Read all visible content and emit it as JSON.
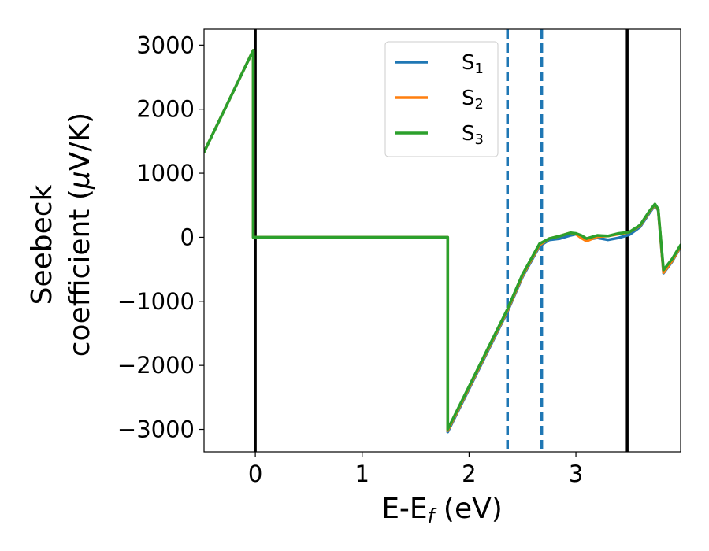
{
  "chart_data": {
    "type": "line",
    "title": "",
    "xlabel_main": "E-E",
    "xlabel_sub": "f",
    "xlabel_unit": " (eV)",
    "ylabel_line1": "Seebeck",
    "ylabel_line2_prefix": "coefficient  (",
    "ylabel_mu": "μ",
    "ylabel_line2_suffix": "V/K)",
    "xlim": [
      -0.48,
      3.98
    ],
    "ylim": [
      -3350,
      3250
    ],
    "xticks": [
      {
        "value": 0,
        "label": "0"
      },
      {
        "value": 1,
        "label": "1"
      },
      {
        "value": 2,
        "label": "2"
      },
      {
        "value": 3,
        "label": "3"
      }
    ],
    "yticks": [
      {
        "value": 3000,
        "label": "3000"
      },
      {
        "value": 2000,
        "label": "2000"
      },
      {
        "value": 1000,
        "label": "1000"
      },
      {
        "value": 0,
        "label": "0"
      },
      {
        "value": -1000,
        "label": "−1000"
      },
      {
        "value": -2000,
        "label": "−2000"
      },
      {
        "value": -3000,
        "label": "−3000"
      }
    ],
    "grid": false,
    "legend_position": "top-center",
    "vlines": [
      {
        "x": 0.0,
        "style": "solid",
        "color": "#000000"
      },
      {
        "x": 3.48,
        "style": "solid",
        "color": "#000000"
      },
      {
        "x": 2.36,
        "style": "dashed",
        "color": "#1f77b4"
      },
      {
        "x": 2.68,
        "style": "dashed",
        "color": "#1f77b4"
      }
    ],
    "series": [
      {
        "name_main": "S",
        "name_sub": "1",
        "color": "#1f77b4",
        "points": [
          [
            -0.48,
            1330
          ],
          [
            -0.02,
            2920
          ],
          [
            -0.02,
            0
          ],
          [
            1.8,
            0
          ],
          [
            1.8,
            -3040
          ],
          [
            2.36,
            -1160
          ],
          [
            2.5,
            -620
          ],
          [
            2.66,
            -140
          ],
          [
            2.75,
            -40
          ],
          [
            2.85,
            -20
          ],
          [
            2.95,
            30
          ],
          [
            3.0,
            50
          ],
          [
            3.05,
            10
          ],
          [
            3.1,
            -40
          ],
          [
            3.2,
            -10
          ],
          [
            3.3,
            -40
          ],
          [
            3.4,
            -10
          ],
          [
            3.5,
            40
          ],
          [
            3.6,
            160
          ],
          [
            3.68,
            360
          ],
          [
            3.74,
            500
          ],
          [
            3.77,
            420
          ],
          [
            3.82,
            -560
          ],
          [
            3.9,
            -380
          ],
          [
            3.98,
            -150
          ]
        ]
      },
      {
        "name_main": "S",
        "name_sub": "2",
        "color": "#ff7f0e",
        "points": [
          [
            -0.48,
            1330
          ],
          [
            -0.02,
            2920
          ],
          [
            -0.02,
            0
          ],
          [
            1.8,
            0
          ],
          [
            1.8,
            -3020
          ],
          [
            2.36,
            -1140
          ],
          [
            2.5,
            -600
          ],
          [
            2.66,
            -120
          ],
          [
            2.75,
            -20
          ],
          [
            2.85,
            20
          ],
          [
            2.95,
            70
          ],
          [
            3.0,
            50
          ],
          [
            3.05,
            -10
          ],
          [
            3.1,
            -60
          ],
          [
            3.2,
            10
          ],
          [
            3.3,
            20
          ],
          [
            3.4,
            50
          ],
          [
            3.5,
            80
          ],
          [
            3.6,
            180
          ],
          [
            3.68,
            380
          ],
          [
            3.74,
            510
          ],
          [
            3.77,
            430
          ],
          [
            3.82,
            -550
          ],
          [
            3.9,
            -370
          ],
          [
            3.98,
            -140
          ]
        ]
      },
      {
        "name_main": "S",
        "name_sub": "3",
        "color": "#2ca02c",
        "points": [
          [
            -0.48,
            1330
          ],
          [
            -0.02,
            2920
          ],
          [
            -0.02,
            0
          ],
          [
            1.8,
            0
          ],
          [
            1.8,
            -3000
          ],
          [
            2.36,
            -1120
          ],
          [
            2.5,
            -580
          ],
          [
            2.66,
            -100
          ],
          [
            2.75,
            -20
          ],
          [
            2.85,
            20
          ],
          [
            2.95,
            70
          ],
          [
            3.0,
            60
          ],
          [
            3.05,
            30
          ],
          [
            3.1,
            -20
          ],
          [
            3.2,
            30
          ],
          [
            3.3,
            20
          ],
          [
            3.4,
            60
          ],
          [
            3.5,
            80
          ],
          [
            3.6,
            190
          ],
          [
            3.68,
            390
          ],
          [
            3.74,
            520
          ],
          [
            3.77,
            440
          ],
          [
            3.82,
            -510
          ],
          [
            3.9,
            -340
          ],
          [
            3.98,
            -120
          ]
        ]
      }
    ]
  }
}
